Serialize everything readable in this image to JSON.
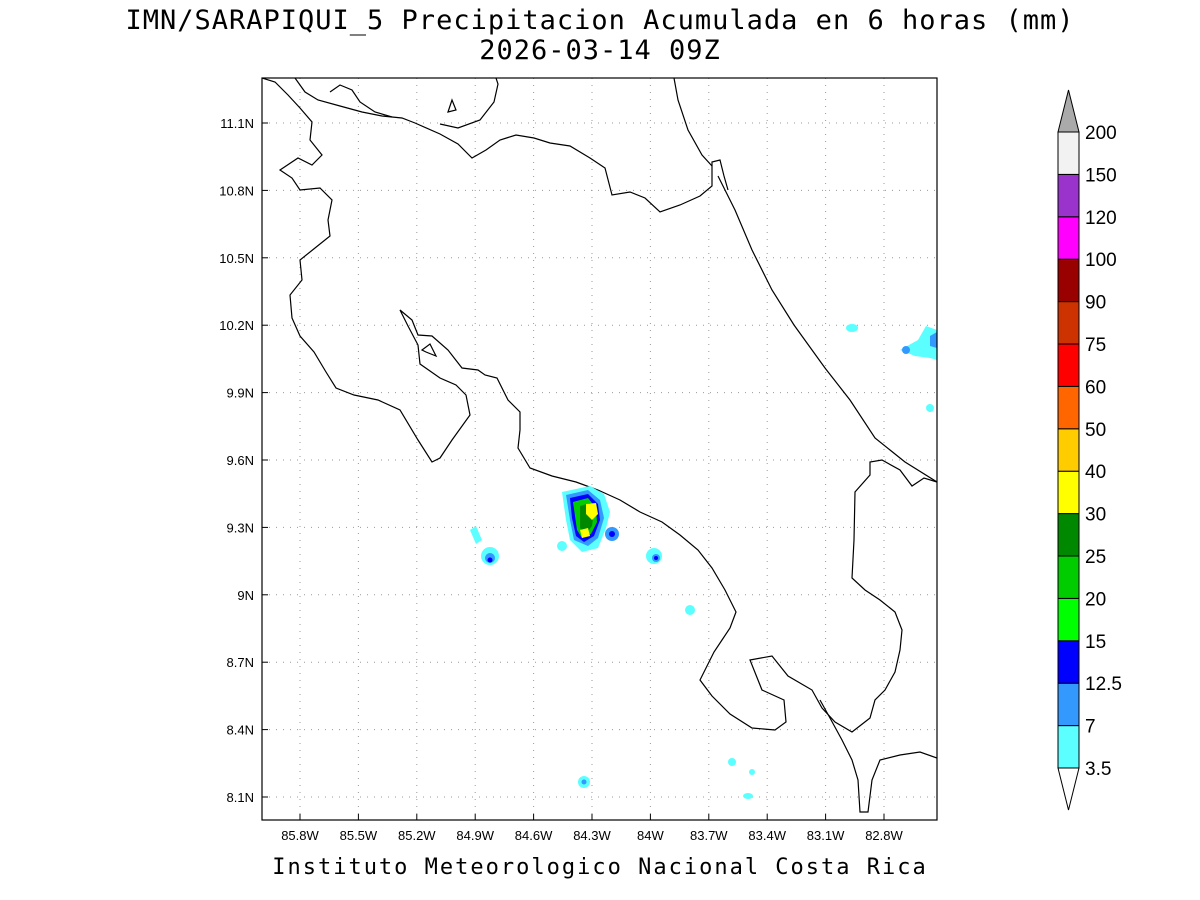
{
  "title": {
    "line1": "IMN/SARAPIQUI_5 Precipitacion Acumulada en 6 horas (mm)",
    "line2": "2026-03-14 09Z"
  },
  "footer": "Instituto Meteorologico Nacional Costa Rica",
  "map": {
    "lat_range": [
      8.0,
      11.3
    ],
    "lon_range": [
      -86.0,
      -82.9
    ],
    "lat_ticks": [
      {
        "value": 11.1,
        "label": "11.1N"
      },
      {
        "value": 10.8,
        "label": "10.8N"
      },
      {
        "value": 10.5,
        "label": "10.5N"
      },
      {
        "value": 10.2,
        "label": "10.2N"
      },
      {
        "value": 9.9,
        "label": "9.9N"
      },
      {
        "value": 9.6,
        "label": "9.6N"
      },
      {
        "value": 9.3,
        "label": "9.3N"
      },
      {
        "value": 9.0,
        "label": "9N"
      },
      {
        "value": 8.7,
        "label": "8.7N"
      },
      {
        "value": 8.4,
        "label": "8.4N"
      },
      {
        "value": 8.1,
        "label": "8.1N"
      }
    ],
    "lon_ticks": [
      {
        "value": -85.8,
        "label": "85.8W"
      },
      {
        "value": -85.5,
        "label": "85.5W"
      },
      {
        "value": -85.2,
        "label": "85.2W"
      },
      {
        "value": -84.9,
        "label": "84.9W"
      },
      {
        "value": -84.6,
        "label": "84.6W"
      },
      {
        "value": -84.3,
        "label": "84.3W"
      },
      {
        "value": -84.0,
        "label": "84W"
      },
      {
        "value": -83.7,
        "label": "83.7W"
      },
      {
        "value": -83.4,
        "label": "83.4W"
      },
      {
        "value": -83.1,
        "label": "83.1W"
      },
      {
        "value": -82.8,
        "label": "82.8W"
      }
    ],
    "grid": true
  },
  "colorbar": {
    "levels": [
      {
        "label": "3.5",
        "color": "#5cffff"
      },
      {
        "label": "7",
        "color": "#3399ff"
      },
      {
        "label": "12.5",
        "color": "#0000ff"
      },
      {
        "label": "15",
        "color": "#00ff00"
      },
      {
        "label": "20",
        "color": "#00cc00"
      },
      {
        "label": "25",
        "color": "#008800"
      },
      {
        "label": "30",
        "color": "#ffff00"
      },
      {
        "label": "40",
        "color": "#ffcc00"
      },
      {
        "label": "50",
        "color": "#ff6600"
      },
      {
        "label": "60",
        "color": "#ff0000"
      },
      {
        "label": "75",
        "color": "#cc3300"
      },
      {
        "label": "90",
        "color": "#990000"
      },
      {
        "label": "100",
        "color": "#ff00ff"
      },
      {
        "label": "120",
        "color": "#9933cc"
      },
      {
        "label": "150",
        "color": "#f2f2f2"
      },
      {
        "label": "200",
        "color": "#aaaaaa"
      }
    ]
  }
}
